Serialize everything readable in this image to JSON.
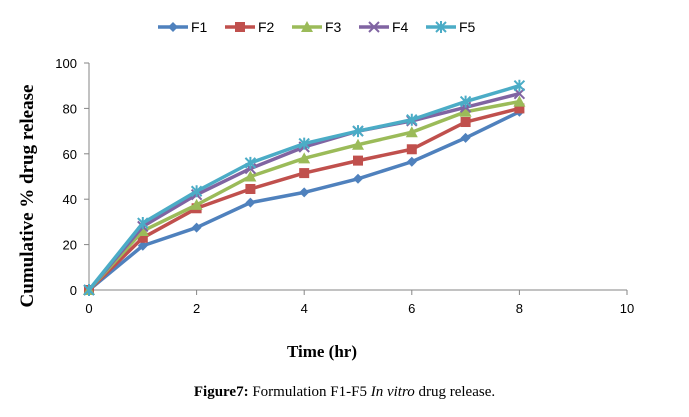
{
  "chart_data": {
    "type": "line",
    "title": "",
    "xlabel": "Time (hr)",
    "ylabel": "Cumulative % drug release",
    "xlim": [
      0,
      10
    ],
    "ylim": [
      0,
      100
    ],
    "xticks": [
      "0",
      "2",
      "4",
      "6",
      "8",
      "10"
    ],
    "yticks": [
      "0",
      "20",
      "40",
      "60",
      "80",
      "100"
    ],
    "legend_position": "top",
    "x": [
      0,
      1,
      2,
      3,
      4,
      5,
      6,
      7,
      8
    ],
    "series": [
      {
        "name": "F1",
        "color": "#4F81BD",
        "marker": "diamond",
        "values": [
          0,
          19.5,
          27.5,
          38.5,
          43,
          49,
          56.5,
          67,
          78.5
        ]
      },
      {
        "name": "F2",
        "color": "#C0504D",
        "marker": "square",
        "values": [
          0,
          23,
          36,
          44.5,
          51.5,
          57,
          62,
          74,
          80
        ]
      },
      {
        "name": "F3",
        "color": "#9BBB59",
        "marker": "triangle",
        "values": [
          0,
          26,
          37.5,
          50,
          58,
          64,
          69.5,
          78.5,
          83
        ]
      },
      {
        "name": "F4",
        "color": "#8064A2",
        "marker": "x",
        "values": [
          0,
          28,
          42,
          53.5,
          63,
          70,
          74.5,
          80.5,
          86.5
        ]
      },
      {
        "name": "F5",
        "color": "#4BACC6",
        "marker": "star",
        "values": [
          0,
          29.5,
          43.5,
          56,
          64.5,
          70,
          75,
          83,
          90
        ]
      }
    ]
  },
  "caption": {
    "figure_label": "Figure7:",
    "text_before": "Formulation F1-F5",
    "text_italic": "In vitro",
    "text_after": "drug release."
  }
}
